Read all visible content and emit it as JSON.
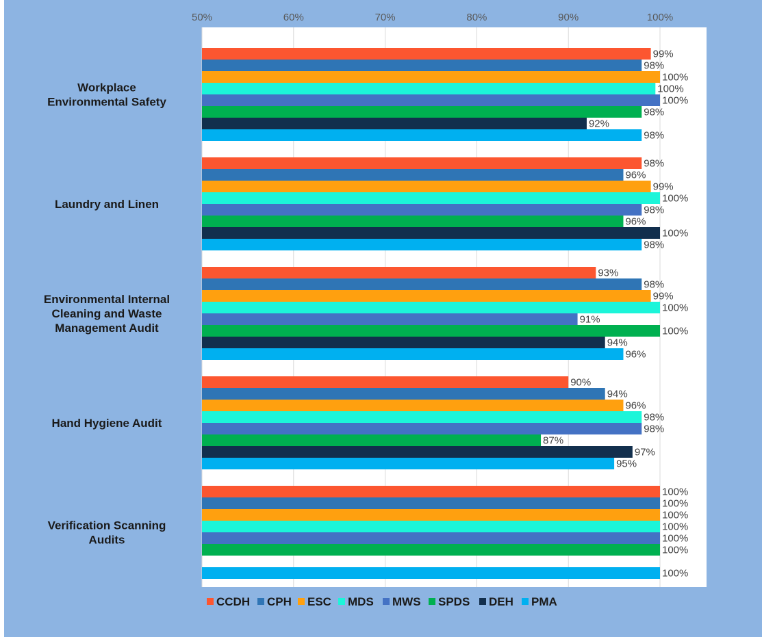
{
  "chart_data": {
    "type": "bar",
    "orientation": "horizontal",
    "categories": [
      [
        "Workplace",
        "Environmental Safety"
      ],
      [
        "Laundry and Linen"
      ],
      [
        "Environmental Internal",
        "Cleaning and Waste",
        "Management Audit"
      ],
      [
        "Hand Hygiene Audit"
      ],
      [
        "Verification Scanning",
        "Audits"
      ]
    ],
    "series": [
      {
        "name": "CCDH",
        "color": "#fc5630",
        "values": [
          0.99,
          0.98,
          0.93,
          0.9,
          1.0
        ],
        "labels": [
          "99%",
          "98%",
          "93%",
          "90%",
          "100%"
        ]
      },
      {
        "name": "CPH",
        "color": "#2f75b5",
        "values": [
          0.98,
          0.96,
          0.98,
          0.94,
          1.0
        ],
        "labels": [
          "98%",
          "96%",
          "98%",
          "94%",
          "100%"
        ]
      },
      {
        "name": "ESC",
        "color": "#ffa00f",
        "values": [
          1.0,
          0.99,
          0.99,
          0.96,
          1.0
        ],
        "labels": [
          "100%",
          "99%",
          "99%",
          "96%",
          "100%"
        ]
      },
      {
        "name": "MDS",
        "color": "#1cf5d9",
        "values": [
          0.995,
          1.0,
          1.0,
          0.98,
          1.0
        ],
        "labels": [
          "100%",
          "100%",
          "100%",
          "98%",
          "100%"
        ]
      },
      {
        "name": "MWS",
        "color": "#4472c4",
        "values": [
          1.0,
          0.98,
          0.91,
          0.98,
          1.0
        ],
        "labels": [
          "100%",
          "98%",
          "91%",
          "98%",
          "100%"
        ]
      },
      {
        "name": "SPDS",
        "color": "#00b050",
        "values": [
          0.98,
          0.96,
          1.0,
          0.87,
          1.0
        ],
        "labels": [
          "98%",
          "96%",
          "100%",
          "87%",
          "100%"
        ]
      },
      {
        "name": "DEH",
        "color": "#122f4d",
        "values": [
          0.92,
          1.0,
          0.94,
          0.97,
          null
        ],
        "labels": [
          "92%",
          "100%",
          "94%",
          "97%",
          ""
        ]
      },
      {
        "name": "PMA",
        "color": "#00b0f0",
        "values": [
          0.98,
          0.98,
          0.96,
          0.95,
          1.0
        ],
        "labels": [
          "98%",
          "98%",
          "96%",
          "95%",
          "100%"
        ]
      }
    ],
    "xlim": [
      0.5,
      1.0
    ],
    "xticks": [
      "50%",
      "60%",
      "70%",
      "80%",
      "90%",
      "100%"
    ],
    "xaxis_position": "top",
    "grid": true,
    "legend_position": "bottom",
    "colors": {
      "frame_background": "#8db4e2",
      "plot_background": "#ffffff",
      "gridline": "#d9d9d9"
    }
  }
}
